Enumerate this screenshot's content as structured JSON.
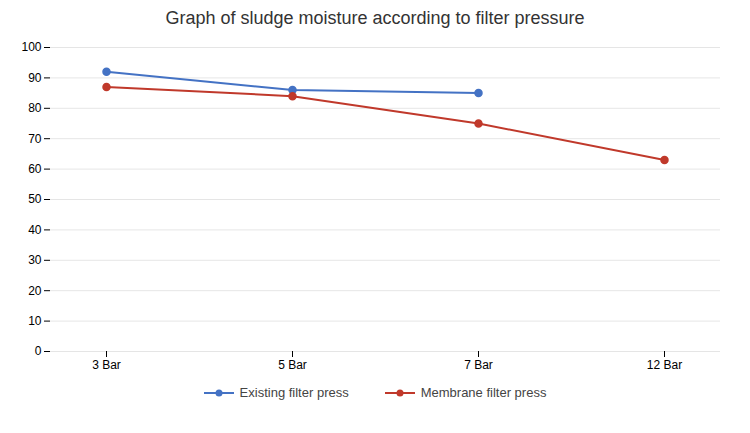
{
  "chart_data": {
    "type": "line",
    "title": "Graph of sludge moisture according to filter pressure",
    "categories": [
      "3 Bar",
      "5 Bar",
      "7 Bar",
      "12 Bar"
    ],
    "series": [
      {
        "name": "Existing filter press",
        "color": "#4472C4",
        "values": [
          92,
          86,
          85,
          null
        ],
        "marker": "circle",
        "line_style": "solid"
      },
      {
        "name": "Membrane filter press",
        "color": "#C0392B",
        "values": [
          87,
          84,
          75,
          63
        ],
        "marker": "circle",
        "line_style": "solid"
      }
    ],
    "ylim": [
      0,
      100
    ],
    "yticks": [
      0,
      10,
      20,
      30,
      40,
      50,
      60,
      70,
      80,
      90,
      100
    ],
    "grid": true,
    "legend": "bottom"
  }
}
